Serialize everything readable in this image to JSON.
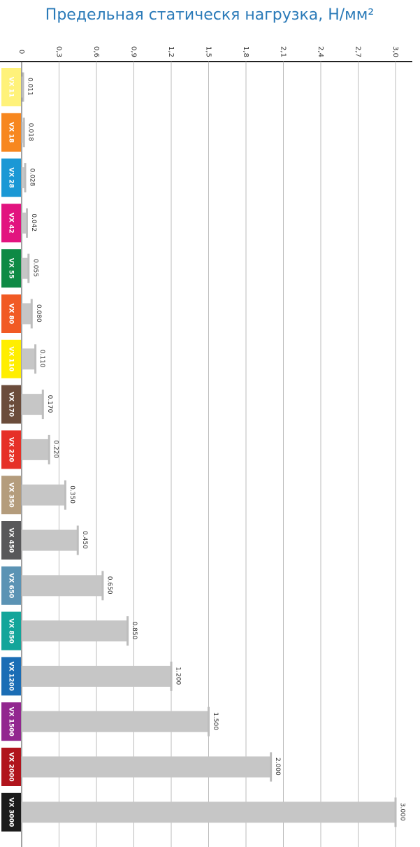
{
  "chart_data": {
    "type": "bar",
    "orientation": "horizontal",
    "title": "Предельная статическя нагрузка, Н/мм²",
    "categories": [
      "VX 11",
      "VX 18",
      "VX 28",
      "VX 42",
      "VX 55",
      "VX 80",
      "VX 110",
      "VX 170",
      "VX 220",
      "VX 350",
      "VX 450",
      "VX 650",
      "VX 850",
      "VX 1200",
      "VX 1500",
      "VX 2000",
      "VX 3000"
    ],
    "category_colors": [
      "#fff27a",
      "#f7871f",
      "#1a98d5",
      "#e2147f",
      "#0e8a45",
      "#f15a24",
      "#ffee00",
      "#6b4c3b",
      "#e63027",
      "#b49c7c",
      "#58585a",
      "#5b93b4",
      "#13a59a",
      "#1b6db5",
      "#92278f",
      "#b0141c",
      "#1b1b1b"
    ],
    "values": [
      0.011,
      0.018,
      0.028,
      0.042,
      0.055,
      0.08,
      0.11,
      0.17,
      0.22,
      0.35,
      0.45,
      0.65,
      0.85,
      1.2,
      1.5,
      2.0,
      3.0
    ],
    "value_labels": [
      "0.011",
      "0.018",
      "0.028",
      "0.042",
      "0.055",
      "0.080",
      "0.110",
      "0.170",
      "0.220",
      "0.350",
      "0.450",
      "0.650",
      "0.850",
      "1.200",
      "1.500",
      "2.000",
      "3.000"
    ],
    "color": "#c6c6c6",
    "xlim": [
      0,
      3.0
    ],
    "xticks": [
      0,
      {
        "value": 0.3,
        "label": "0,3"
      },
      {
        "value": 0.6,
        "label": "0,6"
      },
      {
        "value": 0.9,
        "label": "0,9"
      },
      {
        "value": 1.2,
        "label": "1,2"
      },
      {
        "value": 1.5,
        "label": "1,5"
      },
      {
        "value": 1.8,
        "label": "1,8"
      },
      {
        "value": 2.1,
        "label": "2,1"
      },
      {
        "value": 2.4,
        "label": "2,4"
      },
      {
        "value": 2.7,
        "label": "2,7"
      },
      {
        "value": 3.0,
        "label": "3,0"
      }
    ],
    "grid": true
  }
}
